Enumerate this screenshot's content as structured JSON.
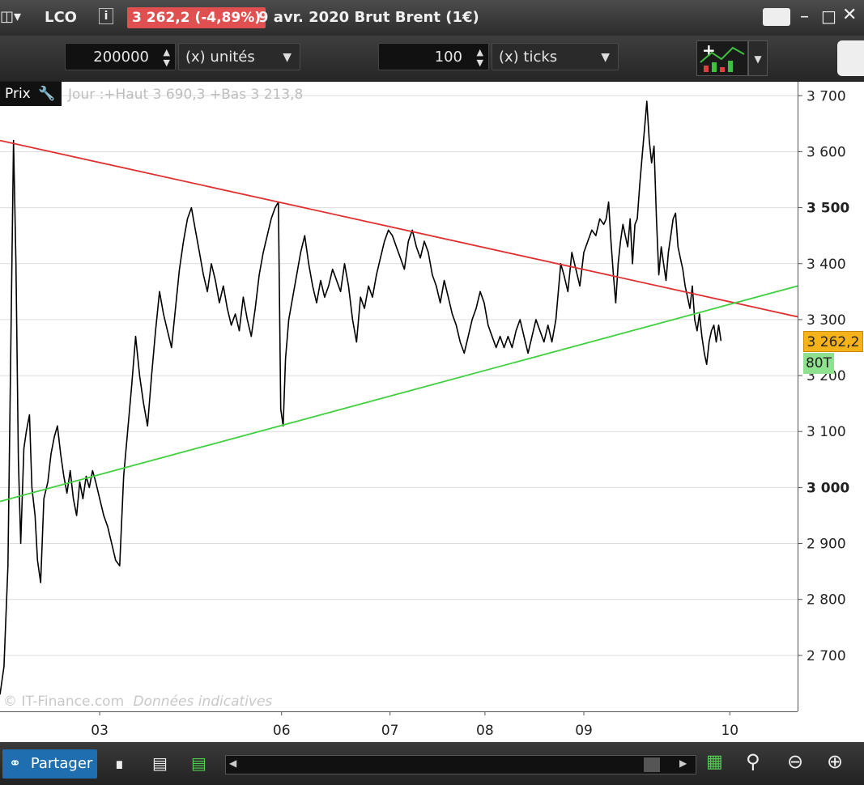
{
  "titlebar": {
    "symbol": "LCO",
    "price_change": "3 262,2 (-4,89%)",
    "description": "9 avr. 2020 Brut Brent (1€)",
    "icons": [
      "chart-type-icon",
      "info-icon",
      "keyboard-icon",
      "minimize-icon",
      "maximize-icon",
      "close-icon"
    ]
  },
  "toolbar": {
    "quantity_value": "200000",
    "quantity_unit": "(x) unités",
    "interval_value": "100",
    "interval_unit": "(x) ticks"
  },
  "chart_panel": {
    "prix_label": "Prix",
    "info_line": "Jour :+Haut 3 690,3 +Bas 3 213,8",
    "watermark": "© IT-Finance.com",
    "watermark_note": "Données indicatives",
    "last_price_tag": "3 262,2",
    "ticks_tag": "80T"
  },
  "bottombar": {
    "share_label": "Partager"
  },
  "colors": {
    "price_line": "#000000",
    "resistance_line": "#e03030",
    "support_line": "#40d040",
    "last_price_tag": "#f5b21a",
    "ticks_tag": "#8fe08f",
    "change_badge": "#e05050"
  },
  "chart_data": {
    "type": "line",
    "ylim": [
      2600,
      3725
    ],
    "xlim": [
      0,
      1000
    ],
    "yticks": [
      {
        "value": 3700,
        "label": "3 700",
        "bold": false
      },
      {
        "value": 3600,
        "label": "3 600",
        "bold": false
      },
      {
        "value": 3500,
        "label": "3 500",
        "bold": true
      },
      {
        "value": 3400,
        "label": "3 400",
        "bold": false
      },
      {
        "value": 3300,
        "label": "3 300",
        "bold": false
      },
      {
        "value": 3200,
        "label": "3 200",
        "bold": false
      },
      {
        "value": 3100,
        "label": "3 100",
        "bold": false
      },
      {
        "value": 3000,
        "label": "3 000",
        "bold": true
      },
      {
        "value": 2900,
        "label": "2 900",
        "bold": false
      },
      {
        "value": 2800,
        "label": "2 800",
        "bold": false
      },
      {
        "value": 2700,
        "label": "2 700",
        "bold": false
      }
    ],
    "xticks": [
      {
        "value": 125,
        "label": "03"
      },
      {
        "value": 353,
        "label": "06"
      },
      {
        "value": 489,
        "label": "07"
      },
      {
        "value": 608,
        "label": "08"
      },
      {
        "value": 732,
        "label": "09"
      },
      {
        "value": 915,
        "label": "10"
      }
    ],
    "series": [
      {
        "points": [
          [
            0,
            2630
          ],
          [
            5,
            2680
          ],
          [
            10,
            2860
          ],
          [
            14,
            3300
          ],
          [
            17,
            3620
          ],
          [
            20,
            3400
          ],
          [
            23,
            3050
          ],
          [
            26,
            2900
          ],
          [
            30,
            3070
          ],
          [
            33,
            3100
          ],
          [
            37,
            3130
          ],
          [
            40,
            3000
          ],
          [
            44,
            2950
          ],
          [
            47,
            2870
          ],
          [
            51,
            2830
          ],
          [
            55,
            2980
          ],
          [
            60,
            3010
          ],
          [
            64,
            3060
          ],
          [
            68,
            3090
          ],
          [
            72,
            3110
          ],
          [
            76,
            3060
          ],
          [
            80,
            3020
          ],
          [
            84,
            2990
          ],
          [
            88,
            3030
          ],
          [
            92,
            2980
          ],
          [
            96,
            2950
          ],
          [
            100,
            3010
          ],
          [
            104,
            2980
          ],
          [
            108,
            3020
          ],
          [
            112,
            3000
          ],
          [
            116,
            3030
          ],
          [
            120,
            3010
          ],
          [
            125,
            2980
          ],
          [
            130,
            2950
          ],
          [
            135,
            2930
          ],
          [
            140,
            2900
          ],
          [
            145,
            2870
          ],
          [
            150,
            2860
          ],
          [
            155,
            3020
          ],
          [
            160,
            3100
          ],
          [
            165,
            3180
          ],
          [
            170,
            3270
          ],
          [
            175,
            3200
          ],
          [
            180,
            3150
          ],
          [
            185,
            3110
          ],
          [
            190,
            3200
          ],
          [
            195,
            3280
          ],
          [
            200,
            3350
          ],
          [
            205,
            3310
          ],
          [
            210,
            3280
          ],
          [
            215,
            3250
          ],
          [
            220,
            3320
          ],
          [
            225,
            3390
          ],
          [
            230,
            3440
          ],
          [
            235,
            3480
          ],
          [
            240,
            3500
          ],
          [
            245,
            3460
          ],
          [
            250,
            3420
          ],
          [
            255,
            3380
          ],
          [
            260,
            3350
          ],
          [
            265,
            3400
          ],
          [
            270,
            3370
          ],
          [
            275,
            3330
          ],
          [
            280,
            3360
          ],
          [
            285,
            3320
          ],
          [
            290,
            3290
          ],
          [
            295,
            3310
          ],
          [
            300,
            3280
          ],
          [
            305,
            3340
          ],
          [
            310,
            3300
          ],
          [
            315,
            3270
          ],
          [
            320,
            3320
          ],
          [
            325,
            3380
          ],
          [
            330,
            3420
          ],
          [
            335,
            3450
          ],
          [
            340,
            3480
          ],
          [
            345,
            3500
          ],
          [
            349,
            3510
          ],
          [
            352,
            3140
          ],
          [
            355,
            3110
          ],
          [
            358,
            3230
          ],
          [
            362,
            3300
          ],
          [
            367,
            3340
          ],
          [
            372,
            3380
          ],
          [
            377,
            3420
          ],
          [
            382,
            3450
          ],
          [
            387,
            3400
          ],
          [
            392,
            3360
          ],
          [
            397,
            3330
          ],
          [
            402,
            3370
          ],
          [
            407,
            3340
          ],
          [
            412,
            3360
          ],
          [
            417,
            3390
          ],
          [
            422,
            3370
          ],
          [
            427,
            3350
          ],
          [
            432,
            3400
          ],
          [
            437,
            3360
          ],
          [
            442,
            3300
          ],
          [
            447,
            3260
          ],
          [
            452,
            3340
          ],
          [
            457,
            3320
          ],
          [
            462,
            3360
          ],
          [
            467,
            3340
          ],
          [
            472,
            3380
          ],
          [
            477,
            3410
          ],
          [
            482,
            3440
          ],
          [
            487,
            3460
          ],
          [
            492,
            3450
          ],
          [
            497,
            3430
          ],
          [
            502,
            3410
          ],
          [
            507,
            3390
          ],
          [
            512,
            3440
          ],
          [
            517,
            3460
          ],
          [
            522,
            3430
          ],
          [
            527,
            3410
          ],
          [
            532,
            3440
          ],
          [
            537,
            3420
          ],
          [
            542,
            3380
          ],
          [
            547,
            3360
          ],
          [
            552,
            3330
          ],
          [
            557,
            3370
          ],
          [
            562,
            3340
          ],
          [
            567,
            3310
          ],
          [
            572,
            3290
          ],
          [
            577,
            3260
          ],
          [
            582,
            3240
          ],
          [
            587,
            3270
          ],
          [
            592,
            3300
          ],
          [
            597,
            3320
          ],
          [
            602,
            3350
          ],
          [
            607,
            3330
          ],
          [
            612,
            3290
          ],
          [
            617,
            3270
          ],
          [
            622,
            3250
          ],
          [
            627,
            3270
          ],
          [
            632,
            3250
          ],
          [
            637,
            3270
          ],
          [
            642,
            3250
          ],
          [
            647,
            3280
          ],
          [
            652,
            3300
          ],
          [
            657,
            3270
          ],
          [
            662,
            3240
          ],
          [
            667,
            3270
          ],
          [
            672,
            3300
          ],
          [
            677,
            3280
          ],
          [
            682,
            3260
          ],
          [
            687,
            3290
          ],
          [
            692,
            3260
          ],
          [
            697,
            3300
          ],
          [
            700,
            3350
          ],
          [
            703,
            3400
          ],
          [
            707,
            3380
          ],
          [
            712,
            3350
          ],
          [
            717,
            3420
          ],
          [
            722,
            3390
          ],
          [
            727,
            3360
          ],
          [
            732,
            3420
          ],
          [
            737,
            3440
          ],
          [
            742,
            3460
          ],
          [
            747,
            3450
          ],
          [
            752,
            3480
          ],
          [
            757,
            3470
          ],
          [
            760,
            3480
          ],
          [
            763,
            3510
          ],
          [
            766,
            3440
          ],
          [
            769,
            3380
          ],
          [
            772,
            3330
          ],
          [
            775,
            3400
          ],
          [
            778,
            3440
          ],
          [
            781,
            3470
          ],
          [
            784,
            3450
          ],
          [
            787,
            3430
          ],
          [
            790,
            3480
          ],
          [
            793,
            3400
          ],
          [
            796,
            3470
          ],
          [
            799,
            3480
          ],
          [
            802,
            3540
          ],
          [
            805,
            3590
          ],
          [
            808,
            3640
          ],
          [
            811,
            3690
          ],
          [
            814,
            3620
          ],
          [
            817,
            3580
          ],
          [
            820,
            3610
          ],
          [
            823,
            3480
          ],
          [
            826,
            3380
          ],
          [
            829,
            3430
          ],
          [
            832,
            3400
          ],
          [
            835,
            3370
          ],
          [
            838,
            3420
          ],
          [
            841,
            3450
          ],
          [
            844,
            3480
          ],
          [
            847,
            3490
          ],
          [
            850,
            3430
          ],
          [
            853,
            3410
          ],
          [
            856,
            3390
          ],
          [
            859,
            3360
          ],
          [
            862,
            3340
          ],
          [
            865,
            3320
          ],
          [
            868,
            3360
          ],
          [
            871,
            3300
          ],
          [
            874,
            3280
          ],
          [
            877,
            3310
          ],
          [
            880,
            3270
          ],
          [
            883,
            3240
          ],
          [
            886,
            3220
          ],
          [
            889,
            3260
          ],
          [
            892,
            3280
          ],
          [
            895,
            3290
          ],
          [
            898,
            3260
          ],
          [
            901,
            3290
          ],
          [
            904,
            3262
          ]
        ]
      }
    ],
    "annotations": [
      {
        "type": "trendline",
        "color": "resistance",
        "from": [
          0,
          3620
        ],
        "to": [
          1000,
          3305
        ]
      },
      {
        "type": "trendline",
        "color": "support",
        "from": [
          0,
          2975
        ],
        "to": [
          1000,
          3360
        ]
      }
    ]
  }
}
